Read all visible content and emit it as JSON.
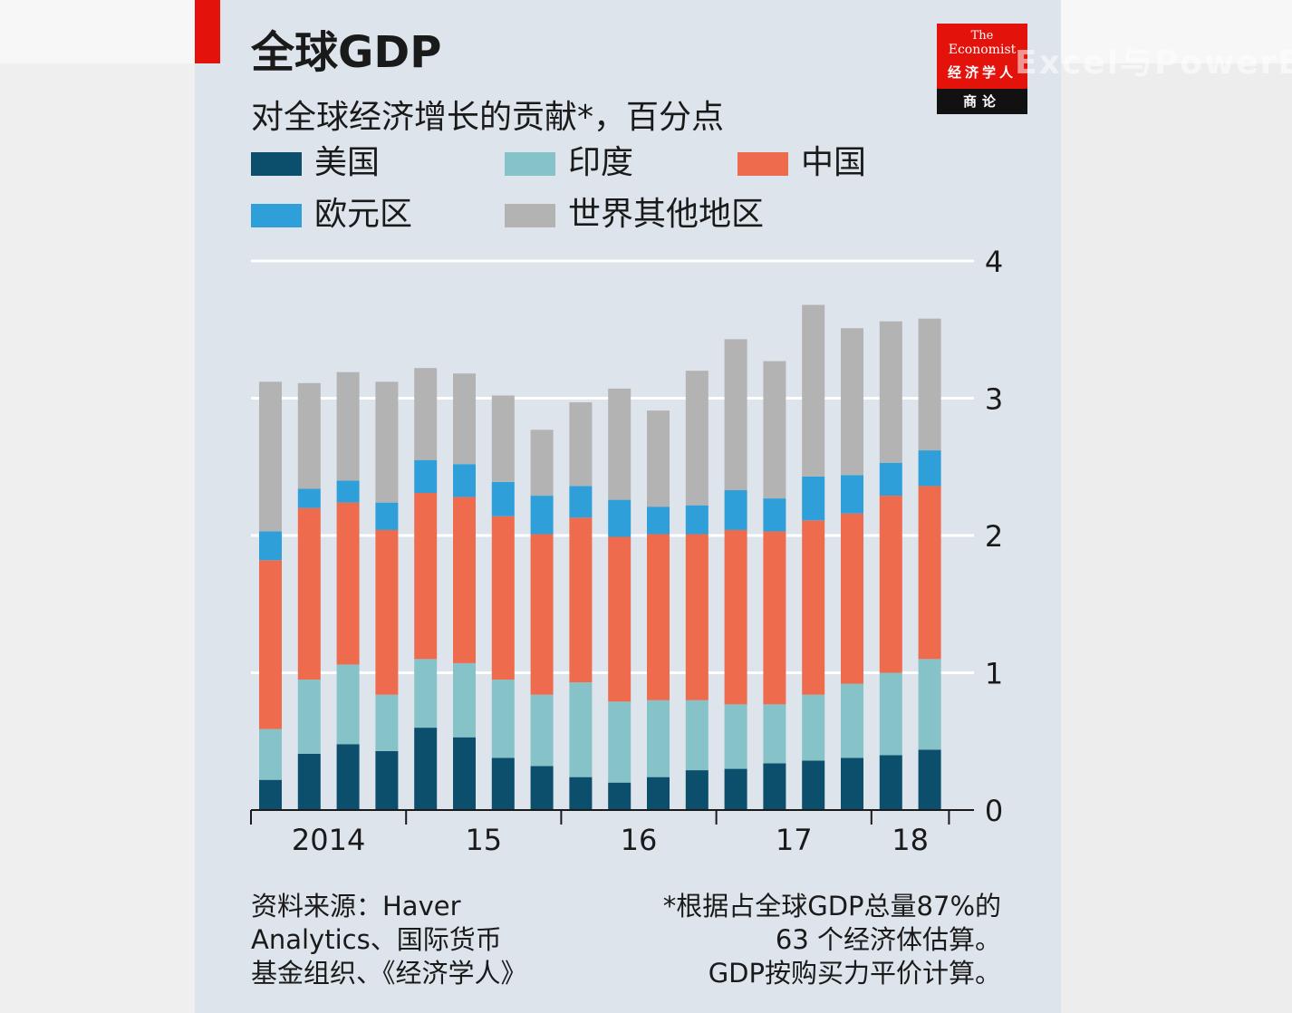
{
  "header": {
    "title": "全球GDP",
    "subtitle": "对全球经济增长的贡献*，百分点"
  },
  "legend": [
    {
      "label": "美国",
      "color": "#0b4f6c"
    },
    {
      "label": "印度",
      "color": "#85c3c8"
    },
    {
      "label": "中国",
      "color": "#ee6b4d"
    },
    {
      "label": "欧元区",
      "color": "#2e9fd8"
    },
    {
      "label": "世界其他地区",
      "color": "#b3b3b3"
    }
  ],
  "logo": {
    "the": "The",
    "economist": "Economist",
    "cn_name": "经济学人",
    "cn_sub": "商论"
  },
  "watermark": "Excel与PowerBI",
  "footer": {
    "source_lines": [
      "资料来源：Haver",
      "Analytics、国际货币",
      "基金组织、《经济学人》"
    ],
    "note_lines": [
      "*根据占全球GDP总量87%的",
      "63 个经济体估算。",
      "GDP按购买力平价计算。"
    ]
  },
  "chart_data": {
    "type": "bar",
    "stacked": true,
    "x_tick_labels": [
      "2014",
      "15",
      "16",
      "17",
      "18"
    ],
    "ylim": [
      0,
      4
    ],
    "y_ticks": [
      0,
      1,
      2,
      3,
      4
    ],
    "grid": true,
    "series": [
      {
        "name": "美国",
        "color": "#0b4f6c",
        "values": [
          0.22,
          0.41,
          0.48,
          0.43,
          0.6,
          0.53,
          0.38,
          0.32,
          0.24,
          0.2,
          0.24,
          0.29,
          0.3,
          0.34,
          0.36,
          0.38,
          0.4,
          0.44
        ]
      },
      {
        "name": "印度",
        "color": "#85c3c8",
        "values": [
          0.37,
          0.54,
          0.58,
          0.41,
          0.5,
          0.54,
          0.57,
          0.52,
          0.69,
          0.59,
          0.56,
          0.51,
          0.47,
          0.43,
          0.48,
          0.54,
          0.6,
          0.66
        ]
      },
      {
        "name": "中国",
        "color": "#ee6b4d",
        "values": [
          1.23,
          1.25,
          1.18,
          1.2,
          1.21,
          1.21,
          1.19,
          1.17,
          1.2,
          1.2,
          1.21,
          1.21,
          1.27,
          1.26,
          1.27,
          1.24,
          1.29,
          1.26
        ]
      },
      {
        "name": "欧元区",
        "color": "#2e9fd8",
        "values": [
          0.21,
          0.14,
          0.16,
          0.2,
          0.24,
          0.24,
          0.25,
          0.28,
          0.23,
          0.27,
          0.2,
          0.21,
          0.29,
          0.24,
          0.32,
          0.28,
          0.24,
          0.26
        ]
      },
      {
        "name": "世界其他地区",
        "color": "#b3b3b3",
        "values": [
          1.09,
          0.77,
          0.79,
          0.88,
          0.67,
          0.66,
          0.63,
          0.48,
          0.61,
          0.81,
          0.7,
          0.98,
          1.1,
          1.0,
          1.25,
          1.07,
          1.03,
          0.96
        ]
      }
    ]
  }
}
